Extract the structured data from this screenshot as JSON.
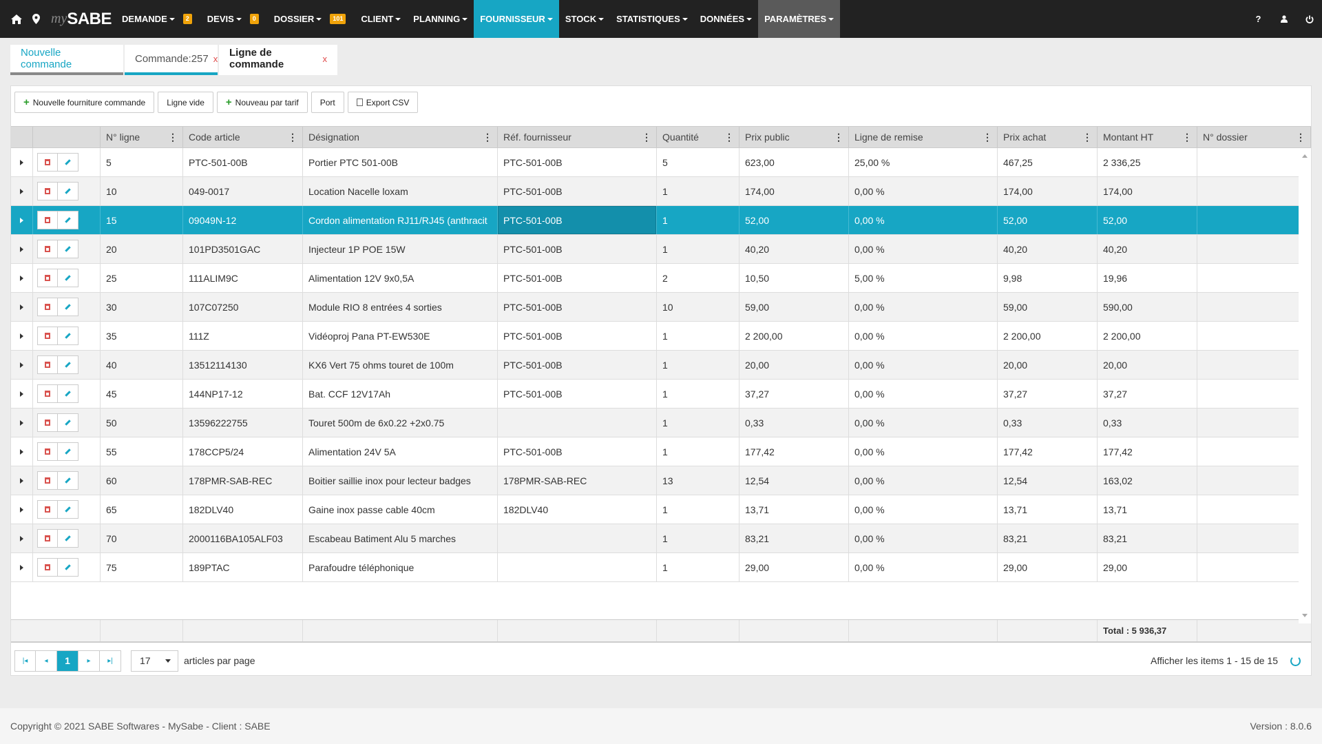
{
  "app": {
    "logo_prefix": "my",
    "logo_name": "SABE"
  },
  "nav": {
    "home_icon": "home-icon",
    "location_icon": "map-marker-icon",
    "items": [
      {
        "label": "DEMANDE",
        "badge": "2"
      },
      {
        "label": "DEVIS",
        "badge": "0"
      },
      {
        "label": "DOSSIER",
        "badge": "101"
      },
      {
        "label": "CLIENT",
        "badge": ""
      },
      {
        "label": "PLANNING",
        "badge": ""
      },
      {
        "label": "FOURNISSEUR",
        "badge": ""
      },
      {
        "label": "STOCK",
        "badge": ""
      },
      {
        "label": "STATISTIQUES",
        "badge": ""
      },
      {
        "label": "DONNÉES",
        "badge": ""
      },
      {
        "label": "PARAMÈTRES",
        "badge": ""
      }
    ],
    "right_icons": [
      "help-icon",
      "user-icon",
      "power-icon"
    ],
    "help_label": "?"
  },
  "tabs": [
    {
      "label": "Nouvelle commande",
      "close": ""
    },
    {
      "label": "Commande:257",
      "close": "x"
    },
    {
      "label": "Ligne de commande",
      "close": "x"
    }
  ],
  "toolbar": {
    "new_supply": "Nouvelle fourniture commande",
    "empty_line": "Ligne vide",
    "new_by_rate": "Nouveau par tarif",
    "port": "Port",
    "export_csv": "Export CSV"
  },
  "grid": {
    "columns": [
      "N° ligne",
      "Code article",
      "Désignation",
      "Réf. fournisseur",
      "Quantité",
      "Prix public",
      "Ligne de remise",
      "Prix achat",
      "Montant HT",
      "N° dossier"
    ],
    "rows": [
      [
        "5",
        "PTC-501-00B",
        "Portier PTC 501-00B",
        "PTC-501-00B",
        "5",
        "623,00",
        "25,00 %",
        "467,25",
        "2 336,25",
        ""
      ],
      [
        "10",
        "049-0017",
        "Location Nacelle loxam",
        "PTC-501-00B",
        "1",
        "174,00",
        "0,00 %",
        "174,00",
        "174,00",
        ""
      ],
      [
        "15",
        "09049N-12",
        "Cordon alimentation RJ11/RJ45 (anthracit",
        "PTC-501-00B",
        "1",
        "52,00",
        "0,00 %",
        "52,00",
        "52,00",
        ""
      ],
      [
        "20",
        "101PD3501GAC",
        "Injecteur 1P POE 15W",
        "PTC-501-00B",
        "1",
        "40,20",
        "0,00 %",
        "40,20",
        "40,20",
        ""
      ],
      [
        "25",
        "111ALIM9C",
        "Alimentation 12V 9x0,5A",
        "PTC-501-00B",
        "2",
        "10,50",
        "5,00 %",
        "9,98",
        "19,96",
        ""
      ],
      [
        "30",
        "107C07250",
        "Module RIO 8 entrées 4 sorties",
        "PTC-501-00B",
        "10",
        "59,00",
        "0,00 %",
        "59,00",
        "590,00",
        ""
      ],
      [
        "35",
        "111Z",
        "Vidéoproj Pana PT-EW530E",
        "PTC-501-00B",
        "1",
        "2 200,00",
        "0,00 %",
        "2 200,00",
        "2 200,00",
        ""
      ],
      [
        "40",
        "13512114130",
        "KX6 Vert 75 ohms touret de 100m",
        "PTC-501-00B",
        "1",
        "20,00",
        "0,00 %",
        "20,00",
        "20,00",
        ""
      ],
      [
        "45",
        "144NP17-12",
        "Bat. CCF 12V17Ah",
        "PTC-501-00B",
        "1",
        "37,27",
        "0,00 %",
        "37,27",
        "37,27",
        ""
      ],
      [
        "50",
        "13596222755",
        "Touret 500m de 6x0.22 +2x0.75",
        "",
        "1",
        "0,33",
        "0,00 %",
        "0,33",
        "0,33",
        ""
      ],
      [
        "55",
        "178CCP5/24",
        "Alimentation 24V 5A",
        "PTC-501-00B",
        "1",
        "177,42",
        "0,00 %",
        "177,42",
        "177,42",
        ""
      ],
      [
        "60",
        "178PMR-SAB-REC",
        "Boitier saillie inox pour lecteur badges",
        "178PMR-SAB-REC",
        "13",
        "12,54",
        "0,00 %",
        "12,54",
        "163,02",
        ""
      ],
      [
        "65",
        "182DLV40",
        "Gaine inox passe cable 40cm",
        "182DLV40",
        "1",
        "13,71",
        "0,00 %",
        "13,71",
        "13,71",
        ""
      ],
      [
        "70",
        "2000116BA105ALF03",
        "Escabeau Batiment Alu 5 marches",
        "",
        "1",
        "83,21",
        "0,00 %",
        "83,21",
        "83,21",
        ""
      ],
      [
        "75",
        "189PTAC",
        "Parafoudre téléphonique",
        "",
        "1",
        "29,00",
        "0,00 %",
        "29,00",
        "29,00",
        ""
      ]
    ],
    "selected_row": 2,
    "total": "Total : 5 936,37"
  },
  "pager": {
    "current_page": "1",
    "page_size": "17",
    "page_size_label": "articles par page",
    "info": "Afficher les items 1 - 15 de 15"
  },
  "footer": {
    "copyright": "Copyright © 2021 SABE Softwares - MySabe - Client : SABE",
    "version": "Version : 8.0.6"
  },
  "colors": {
    "accent": "#17a6c4",
    "topbar": "#222222",
    "badge": "#f0a30a",
    "delete": "#d9534f"
  }
}
